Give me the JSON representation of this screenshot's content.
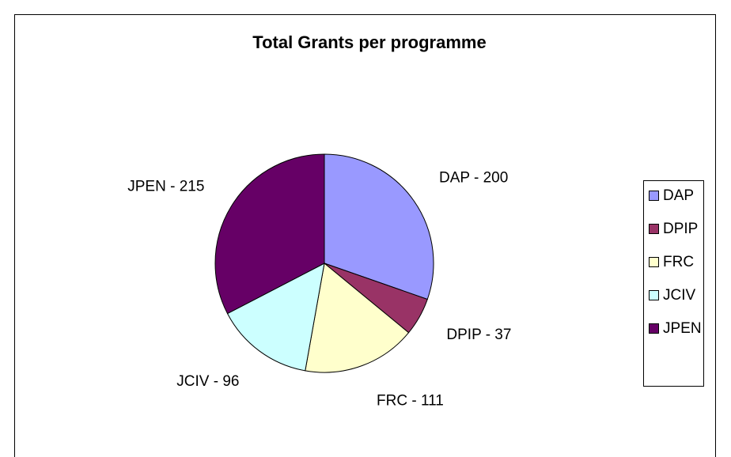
{
  "chart_data": {
    "type": "pie",
    "title": "Total Grants per programme",
    "categories": [
      "DAP",
      "DPIP",
      "FRC",
      "JCIV",
      "JPEN"
    ],
    "values": [
      200,
      37,
      111,
      96,
      215
    ],
    "value_labels": [
      "DAP - 200",
      "DPIP - 37",
      "FRC - 111",
      "JCIV - 96",
      "JPEN - 215"
    ],
    "colors": [
      "#9999ff",
      "#993366",
      "#ffffcc",
      "#ccffff",
      "#660066"
    ],
    "legend": "right"
  }
}
